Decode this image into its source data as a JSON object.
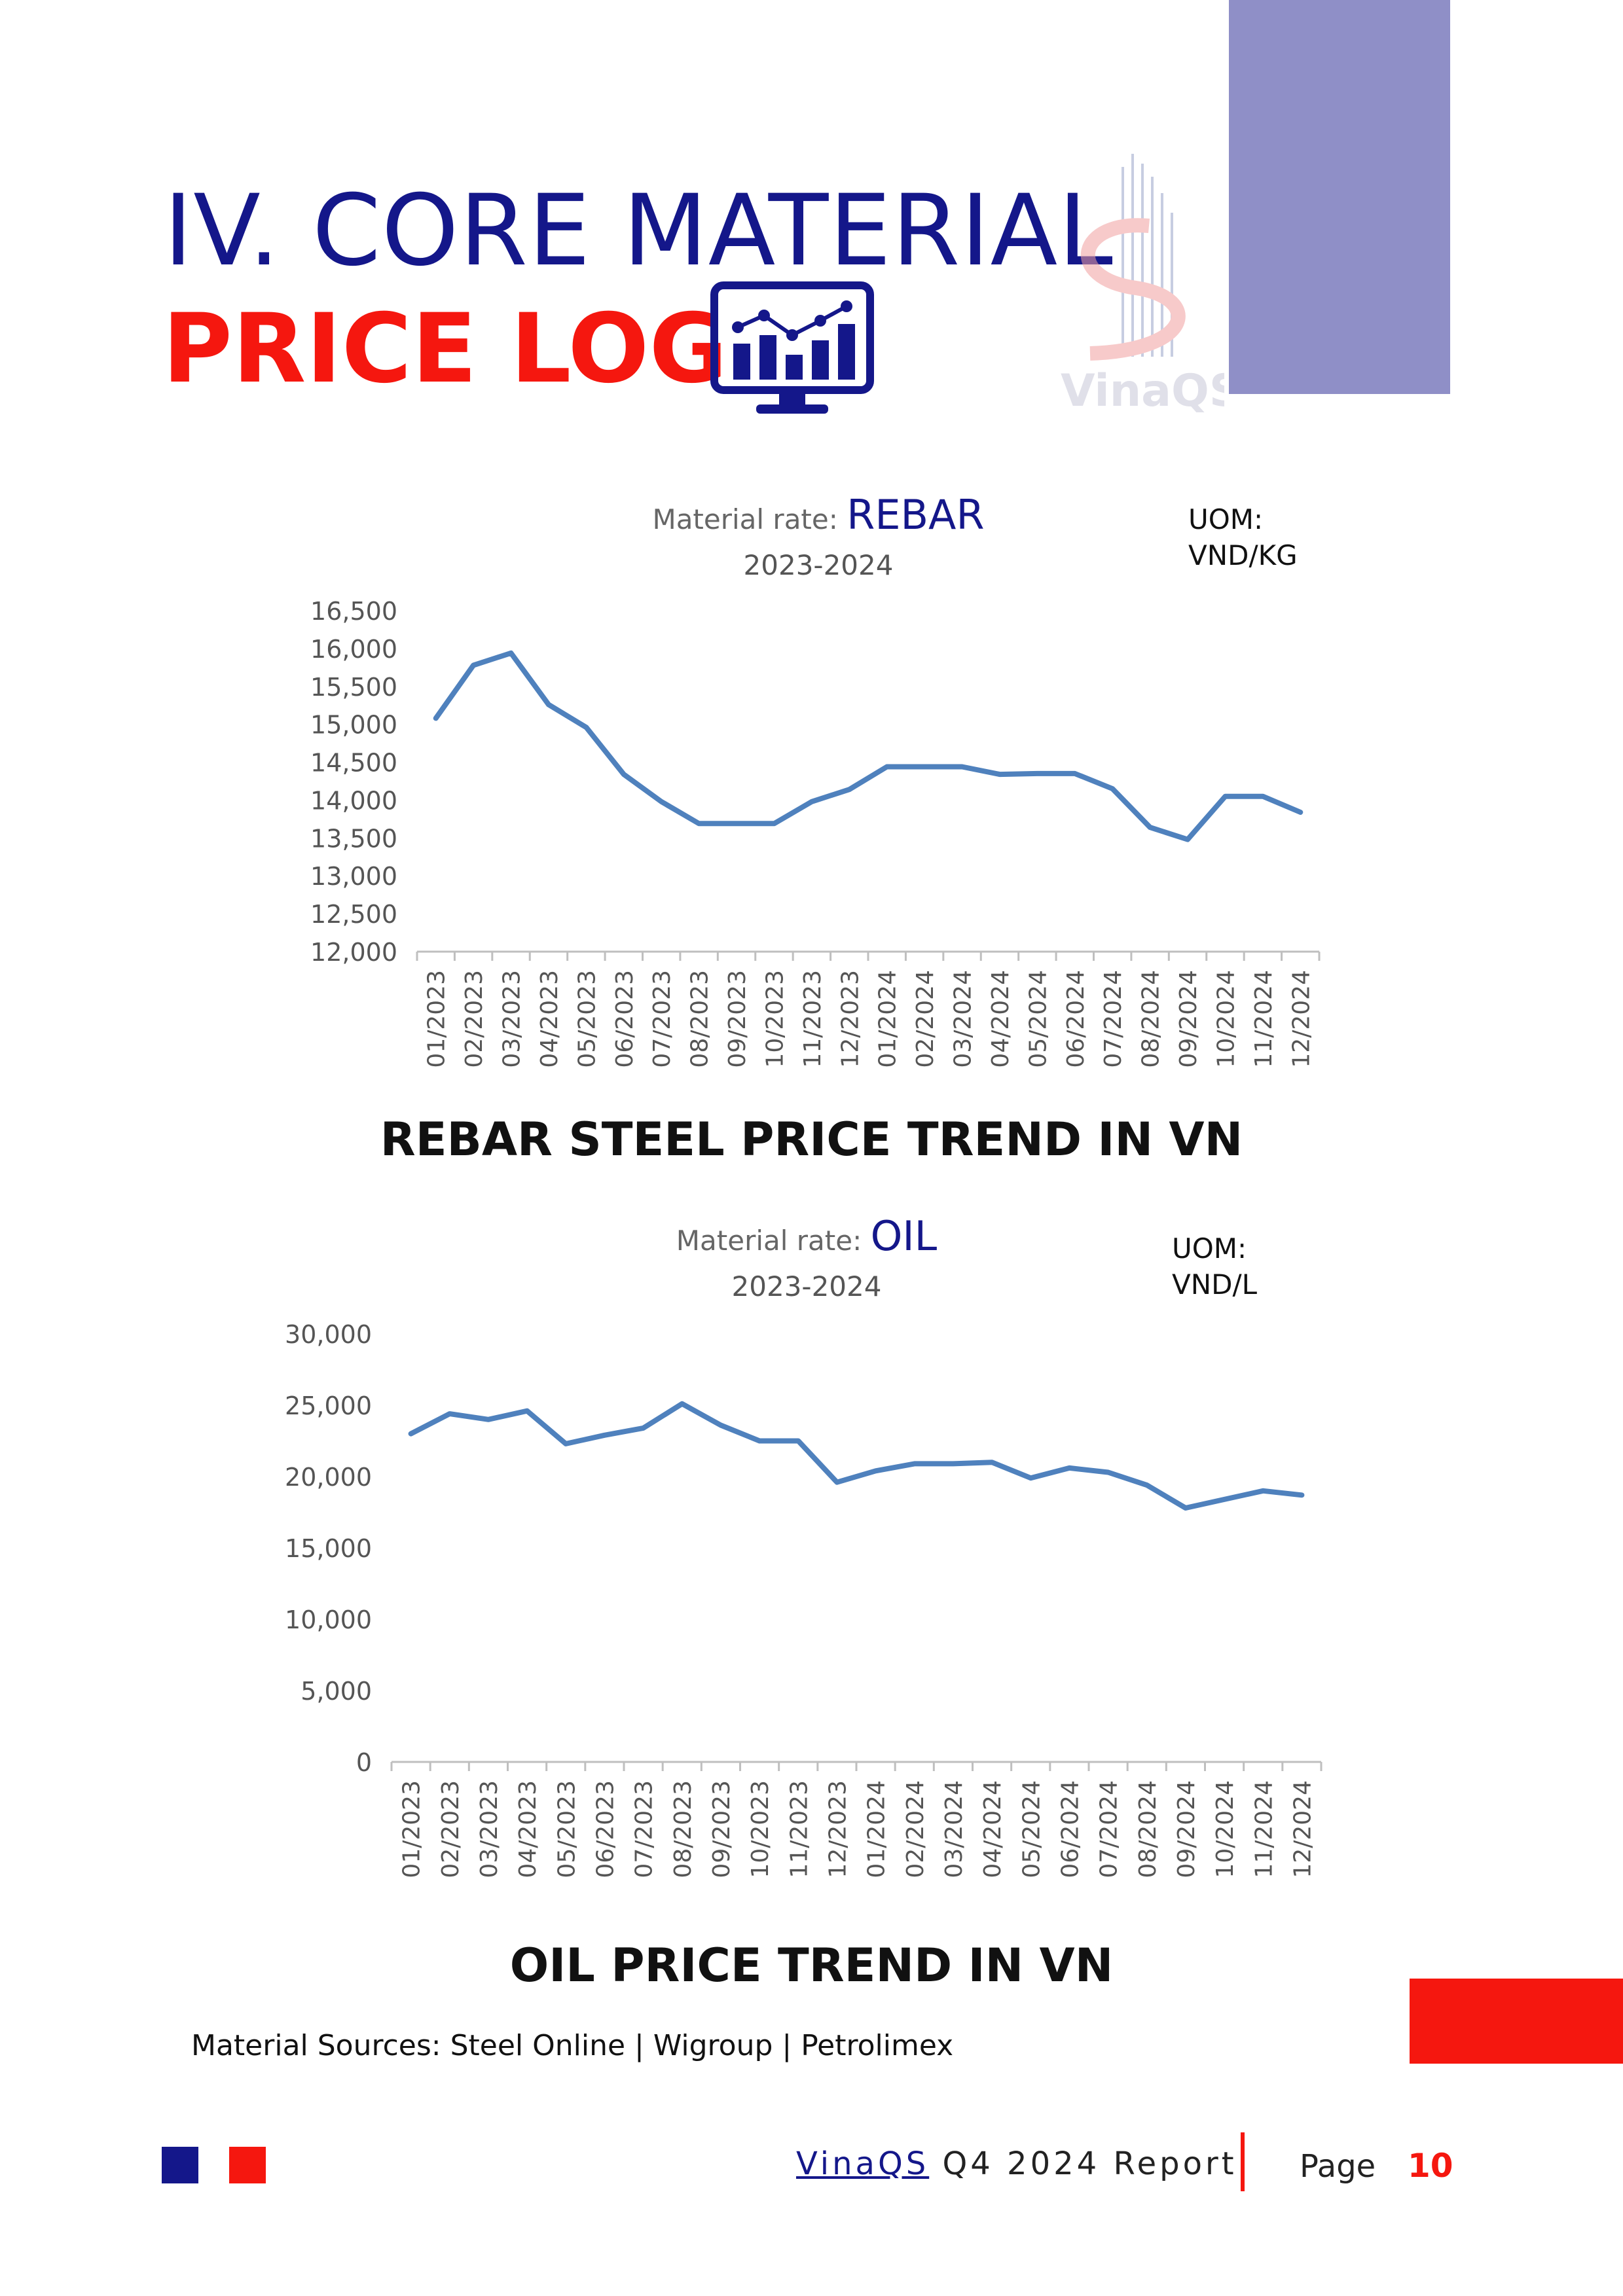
{
  "header": {
    "title_line1": "IV. CORE MATERIAL",
    "title_line2": "PRICE LOG",
    "icon": "chart-monitor-icon",
    "logo_text": "VinaQS"
  },
  "colors": {
    "navy": "#14178a",
    "red": "#f5170f",
    "purple": "#8f8fc7",
    "series_line": "#4f81bd"
  },
  "rebar": {
    "caption": "REBAR STEEL PRICE TREND IN VN",
    "chart_data": {
      "type": "line",
      "title_prefix": "Material rate: ",
      "title_material": "REBAR",
      "subtitle": "2023-2024",
      "uom_label": "UOM:",
      "uom_value": "VND/KG",
      "xlabel": "",
      "ylabel": "",
      "ylim": [
        12000,
        16500
      ],
      "yticks": [
        12000,
        12500,
        13000,
        13500,
        14000,
        14500,
        15000,
        15500,
        16000,
        16500
      ],
      "ytick_labels": [
        "12,000",
        "12,500",
        "13,000",
        "13,500",
        "14,000",
        "14,500",
        "15,000",
        "15,500",
        "16,000",
        "16,500"
      ],
      "grid": false,
      "legend": "none",
      "categories": [
        "01/2023",
        "02/2023",
        "03/2023",
        "04/2023",
        "05/2023",
        "06/2023",
        "07/2023",
        "08/2023",
        "09/2023",
        "10/2023",
        "11/2023",
        "12/2023",
        "01/2024",
        "02/2024",
        "03/2024",
        "04/2024",
        "05/2024",
        "06/2024",
        "07/2024",
        "08/2024",
        "09/2024",
        "10/2024",
        "11/2024",
        "12/2024"
      ],
      "series": [
        {
          "values": [
            15080,
            15780,
            15940,
            15260,
            14960,
            14340,
            13980,
            13690,
            13690,
            13690,
            13980,
            14140,
            14440,
            14440,
            14440,
            14340,
            14350,
            14350,
            14150,
            13640,
            13480,
            14050,
            14050,
            13840
          ]
        }
      ]
    }
  },
  "oil": {
    "caption": "OIL PRICE TREND IN VN",
    "chart_data": {
      "type": "line",
      "title_prefix": "Material rate: ",
      "title_material": "OIL",
      "subtitle": "2023-2024",
      "uom_label": "UOM:",
      "uom_value": "VND/L",
      "xlabel": "",
      "ylabel": "",
      "ylim": [
        0,
        30000
      ],
      "yticks": [
        0,
        5000,
        10000,
        15000,
        20000,
        25000,
        30000
      ],
      "ytick_labels": [
        "0",
        "5,000",
        "10,000",
        "15,000",
        "20,000",
        "25,000",
        "30,000"
      ],
      "grid": false,
      "legend": "none",
      "categories": [
        "01/2023",
        "02/2023",
        "03/2023",
        "04/2023",
        "05/2023",
        "06/2023",
        "07/2023",
        "08/2023",
        "09/2023",
        "10/2023",
        "11/2023",
        "12/2023",
        "01/2024",
        "02/2024",
        "03/2024",
        "04/2024",
        "05/2024",
        "06/2024",
        "07/2024",
        "08/2024",
        "09/2024",
        "10/2024",
        "11/2024",
        "12/2024"
      ],
      "series": [
        {
          "values": [
            23000,
            24400,
            24000,
            24600,
            22300,
            22900,
            23400,
            25100,
            23600,
            22500,
            22500,
            19600,
            20400,
            20900,
            20900,
            21000,
            19900,
            20600,
            20300,
            19400,
            17800,
            18400,
            19000,
            18700
          ]
        }
      ]
    }
  },
  "sources": "Material Sources: Steel Online | Wigroup | Petrolimex",
  "footer": {
    "brand_link": "VinaQS",
    "brand_rest": " Q4 2024 Report",
    "page_label": "Page",
    "page_number": "10"
  }
}
